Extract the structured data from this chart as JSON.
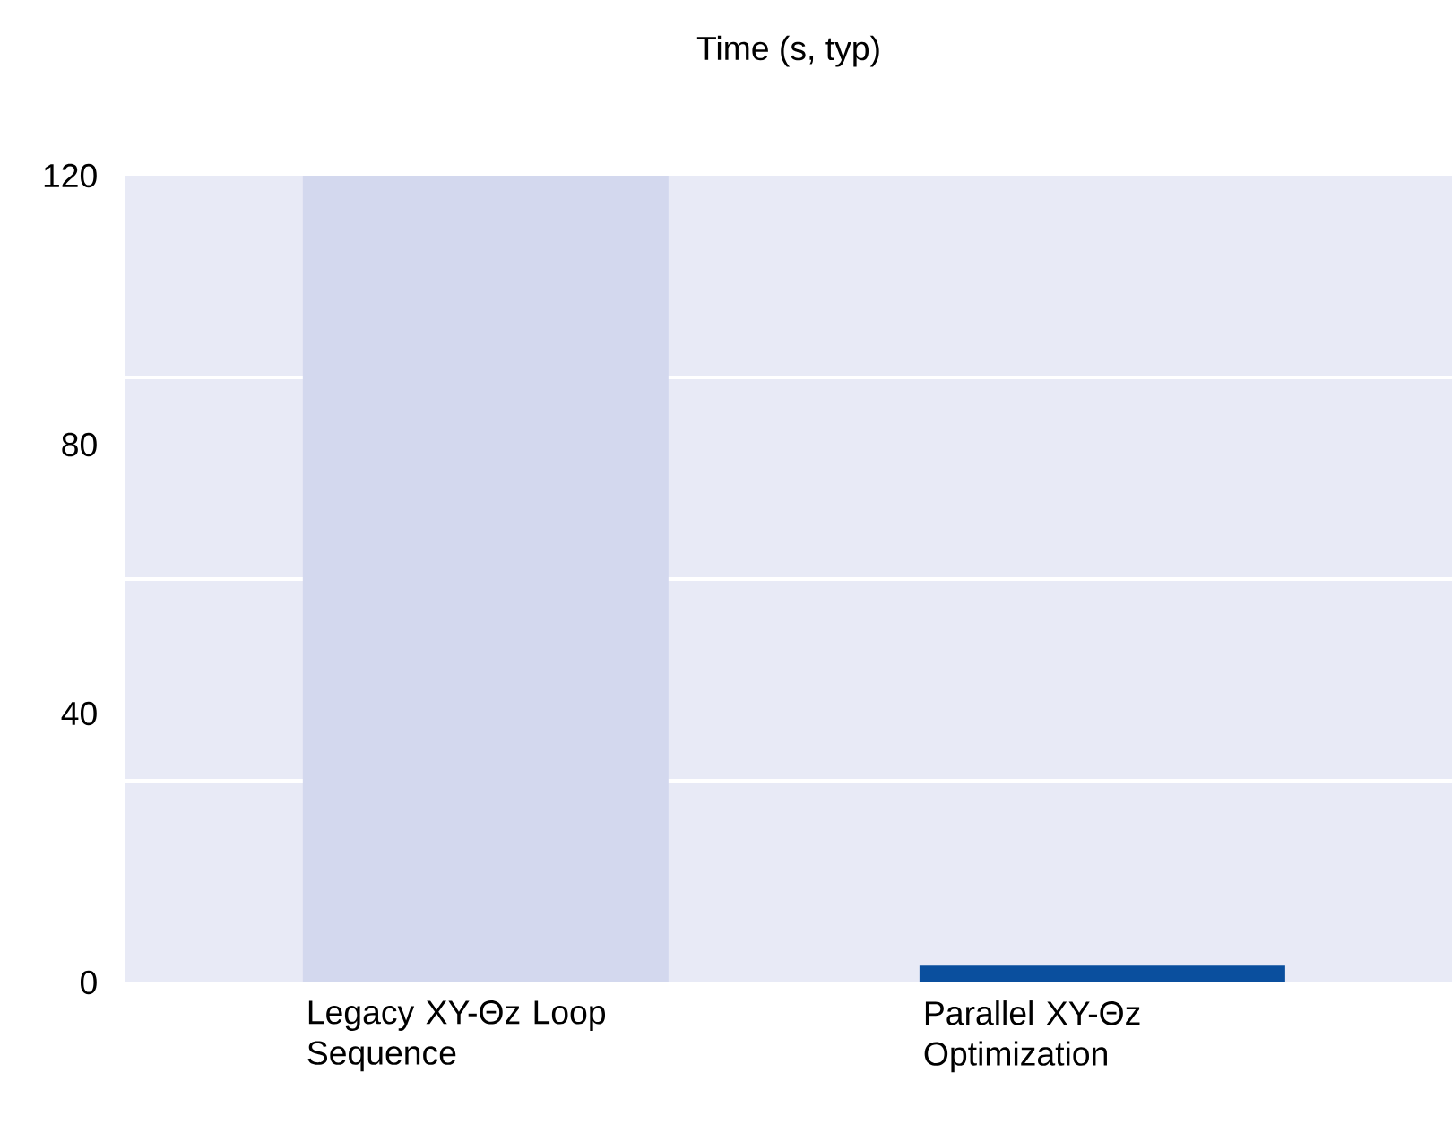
{
  "chart_data": {
    "type": "bar",
    "title": "Time (s, typ)",
    "categories": [
      "Legacy XY-Θz Loop Sequence",
      "Parallel XY-Θz Optimization"
    ],
    "values": [
      120,
      2.5
    ],
    "colors": [
      "#d3d8ee",
      "#0a4f9e"
    ],
    "ylim": [
      0,
      120
    ],
    "yticks": [
      0,
      {
        "value": 30,
        "label": null
      },
      40,
      {
        "value": 60,
        "label": null
      },
      80,
      {
        "value": 90,
        "label": null
      },
      120
    ],
    "grid": "y"
  }
}
